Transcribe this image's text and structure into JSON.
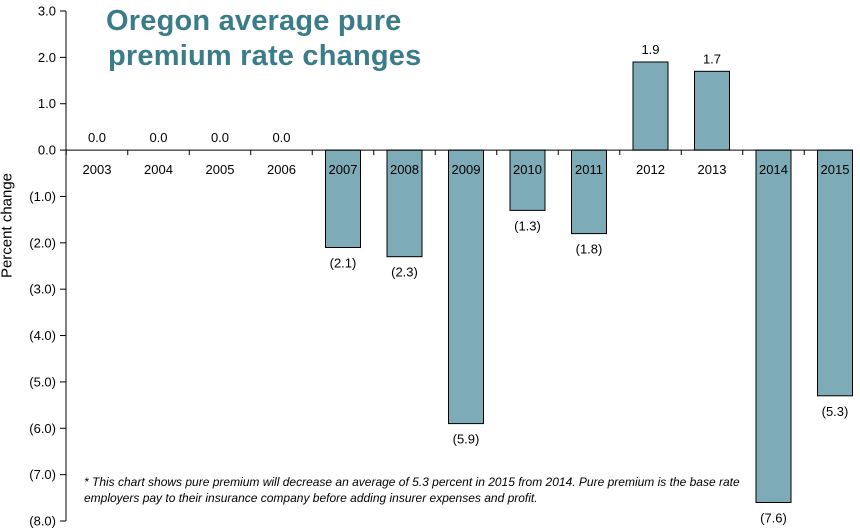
{
  "chart_data": {
    "type": "bar",
    "title_lines": [
      "Oregon average pure",
      "premium rate changes"
    ],
    "ylabel": "Percent change",
    "xlabel": "",
    "ylim": [
      -8,
      3
    ],
    "ytick_values": [
      3,
      2,
      1,
      0,
      -1,
      -2,
      -3,
      -4,
      -5,
      -6,
      -7,
      -8
    ],
    "ytick_labels": [
      "3.0",
      "2.0",
      "1.0",
      "0.0",
      "(1.0)",
      "(2.0)",
      "(3.0)",
      "(4.0)",
      "(5.0)",
      "(6.0)",
      "(7.0)",
      "(8.0)"
    ],
    "categories": [
      "2003",
      "2004",
      "2005",
      "2006",
      "2007",
      "2008",
      "2009",
      "2010",
      "2011",
      "2012",
      "2013",
      "2014",
      "2015"
    ],
    "values": [
      0.0,
      0.0,
      0.0,
      0.0,
      -2.1,
      -2.3,
      -5.9,
      -1.3,
      -1.8,
      1.9,
      1.7,
      -7.6,
      -5.3
    ],
    "data_labels": [
      "0.0",
      "0.0",
      "0.0",
      "0.0",
      "(2.1)",
      "(2.3)",
      "(5.9)",
      "(1.3)",
      "(1.8)",
      "1.9",
      "1.7",
      "(7.6)",
      "(5.3)"
    ],
    "colors": {
      "bar_fill": "#7eabb8",
      "bar_stroke": "#000000",
      "title": "#3b7c89",
      "axis": "#000000"
    },
    "grid": false,
    "legend": "none",
    "footnote": "* This chart shows pure premium will decrease an average of 5.3 percent in 2015 from 2014. Pure premium is the base rate employers pay to their insurance company before adding insurer expenses and profit."
  }
}
